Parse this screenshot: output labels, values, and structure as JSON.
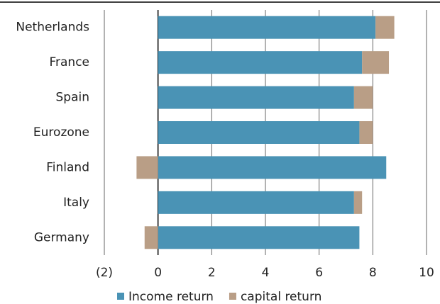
{
  "chart_data": {
    "type": "stacked-barh",
    "categories": [
      "Netherlands",
      "France",
      "Spain",
      "Eurozone",
      "Finland",
      "Italy",
      "Germany"
    ],
    "series": [
      {
        "name": "Income return",
        "color": "#4a93b5",
        "values": [
          8.1,
          7.6,
          7.3,
          7.5,
          8.5,
          7.3,
          7.5
        ]
      },
      {
        "name": "capital return",
        "color": "#b99e86",
        "values": [
          0.7,
          1.0,
          0.7,
          0.5,
          -0.8,
          0.3,
          -0.5
        ]
      }
    ],
    "xlim": [
      -2,
      10
    ],
    "xticks": [
      {
        "value": -2,
        "label": "(2)"
      },
      0,
      2,
      4,
      6,
      8,
      10
    ],
    "grid": true
  }
}
